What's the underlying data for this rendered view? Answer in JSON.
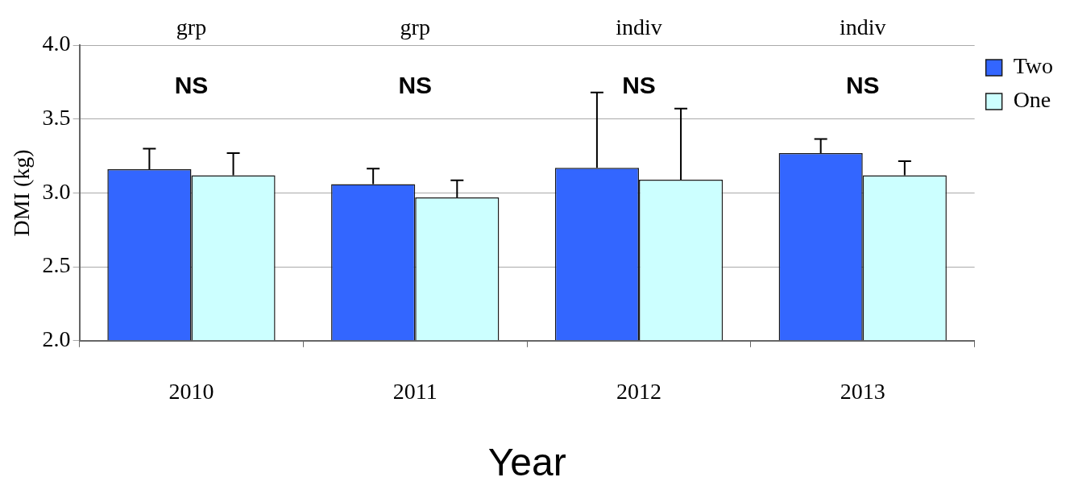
{
  "chart_data": {
    "type": "bar",
    "categories": [
      "2010",
      "2011",
      "2012",
      "2013"
    ],
    "series": [
      {
        "name": "Two",
        "color": "#3366ff",
        "values": [
          3.16,
          3.06,
          3.17,
          3.27
        ],
        "errors": [
          [
            3.16,
            3.3
          ],
          [
            3.06,
            3.165
          ],
          [
            3.17,
            3.68
          ],
          [
            3.27,
            3.365
          ]
        ]
      },
      {
        "name": "One",
        "color": "#ccffff",
        "values": [
          3.12,
          2.97,
          3.09,
          3.12
        ],
        "errors": [
          [
            3.12,
            3.27
          ],
          [
            2.97,
            3.085
          ],
          [
            3.09,
            3.57
          ],
          [
            3.12,
            3.215
          ]
        ]
      }
    ],
    "ylim": [
      2.0,
      4.0
    ],
    "yticks": [
      {
        "value": 2,
        "label": "2.0"
      },
      {
        "value": 2.5,
        "label": "2.5"
      },
      {
        "value": 3,
        "label": "3.0"
      },
      {
        "value": 3.5,
        "label": "3.5"
      },
      {
        "value": 4,
        "label": "4.0"
      }
    ],
    "xlabel": "Year",
    "ylabel": "DMI (kg)",
    "grid": "y",
    "legend": "top right",
    "annotations": [
      "grp",
      "grp",
      "indiv",
      "indiv",
      "NS",
      "NS",
      "NS",
      "NS"
    ]
  }
}
